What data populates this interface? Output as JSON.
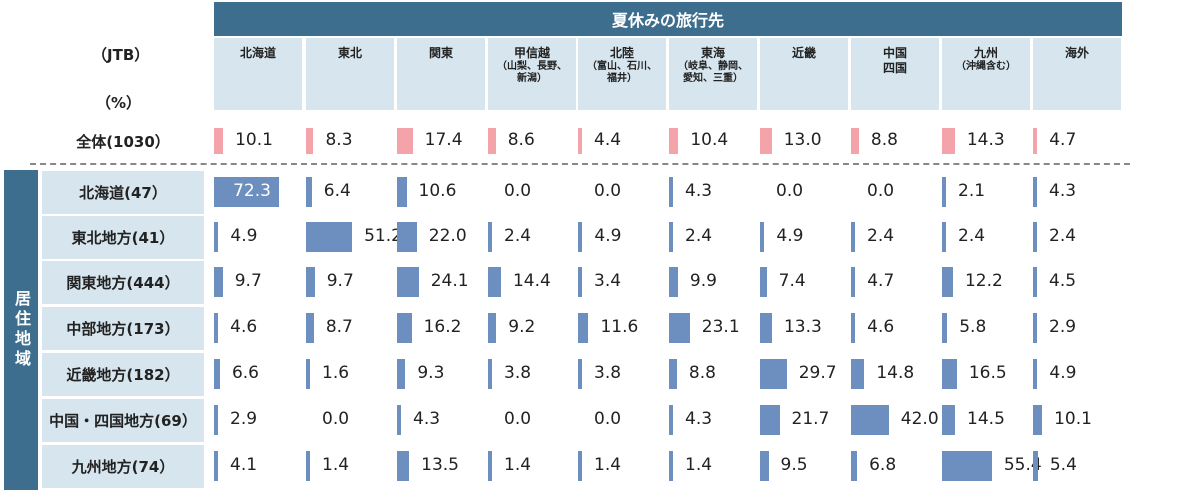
{
  "chart_data": {
    "type": "table",
    "source_label": "（JTB）",
    "unit_label": "（%）",
    "header_group": "夏休みの旅行先",
    "side_label": "居住地域",
    "columns": [
      {
        "name": "北海道",
        "sub": ""
      },
      {
        "name": "東北",
        "sub": ""
      },
      {
        "name": "関東",
        "sub": ""
      },
      {
        "name": "甲信越",
        "sub": "（山梨、長野、新潟）"
      },
      {
        "name": "北陸",
        "sub": "（富山、石川、福井）"
      },
      {
        "name": "東海",
        "sub": "（岐阜、静岡、愛知、三重）"
      },
      {
        "name": "近畿",
        "sub": ""
      },
      {
        "name": "中国四国",
        "sub": ""
      },
      {
        "name": "九州",
        "sub": "（沖縄含む）"
      },
      {
        "name": "海外",
        "sub": ""
      }
    ],
    "total": {
      "label": "全体(1030）",
      "values": [
        10.1,
        8.3,
        17.4,
        8.6,
        4.4,
        10.4,
        13.0,
        8.8,
        14.3,
        4.7
      ]
    },
    "rows": [
      {
        "label": "北海道(47）",
        "values": [
          72.3,
          6.4,
          10.6,
          0.0,
          0.0,
          4.3,
          0.0,
          0.0,
          2.1,
          4.3
        ]
      },
      {
        "label": "東北地方(41）",
        "values": [
          4.9,
          51.2,
          22.0,
          2.4,
          4.9,
          2.4,
          4.9,
          2.4,
          2.4,
          2.4
        ]
      },
      {
        "label": "関東地方(444）",
        "values": [
          9.7,
          9.7,
          24.1,
          14.4,
          3.4,
          9.9,
          7.4,
          4.7,
          12.2,
          4.5
        ]
      },
      {
        "label": "中部地方(173）",
        "values": [
          4.6,
          8.7,
          16.2,
          9.2,
          11.6,
          23.1,
          13.3,
          4.6,
          5.8,
          2.9
        ]
      },
      {
        "label": "近畿地方(182）",
        "values": [
          6.6,
          1.6,
          9.3,
          3.8,
          3.8,
          8.8,
          29.7,
          14.8,
          16.5,
          4.9
        ]
      },
      {
        "label": "中国・四国地方(69）",
        "values": [
          2.9,
          0.0,
          4.3,
          0.0,
          0.0,
          4.3,
          21.7,
          42.0,
          14.5,
          10.1
        ]
      },
      {
        "label": "九州地方(74）",
        "values": [
          4.1,
          1.4,
          13.5,
          1.4,
          1.4,
          1.4,
          9.5,
          6.8,
          55.4,
          5.4
        ]
      }
    ],
    "colors": {
      "header": "#3e6e8e",
      "header_light": "#d6e5ee",
      "total_bar": "#f4a3aa",
      "row_bar": "#6d8fbf"
    }
  }
}
